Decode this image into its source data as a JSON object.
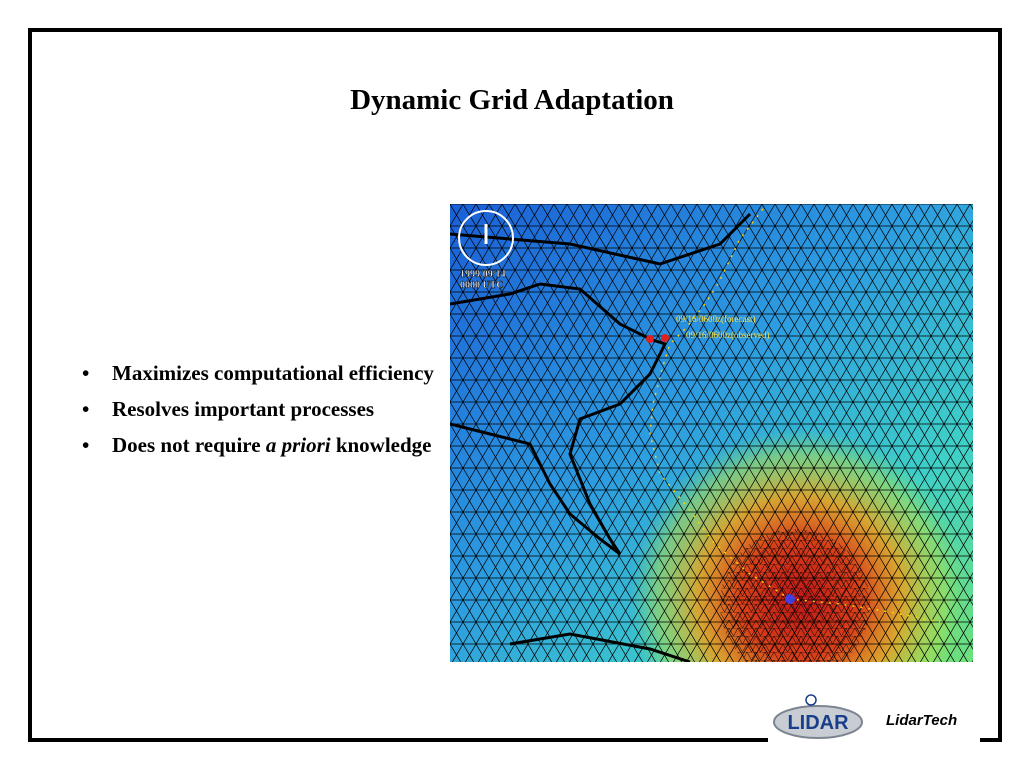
{
  "title": "Dynamic Grid Adaptation",
  "bullets": [
    {
      "parts": [
        "Maximizes computational efficiency"
      ]
    },
    {
      "parts": [
        "Resolves important processes"
      ]
    },
    {
      "parts": [
        "Does not require ",
        "a priori",
        " knowledge"
      ]
    }
  ],
  "map": {
    "date": "1999/09/14",
    "time": "0000 UTC",
    "forecast": "09/16/0600z(forecast)",
    "observed": "09/16/0600z(observed)"
  },
  "logo": {
    "mark": "LIDAR",
    "company": "LidarTech"
  }
}
